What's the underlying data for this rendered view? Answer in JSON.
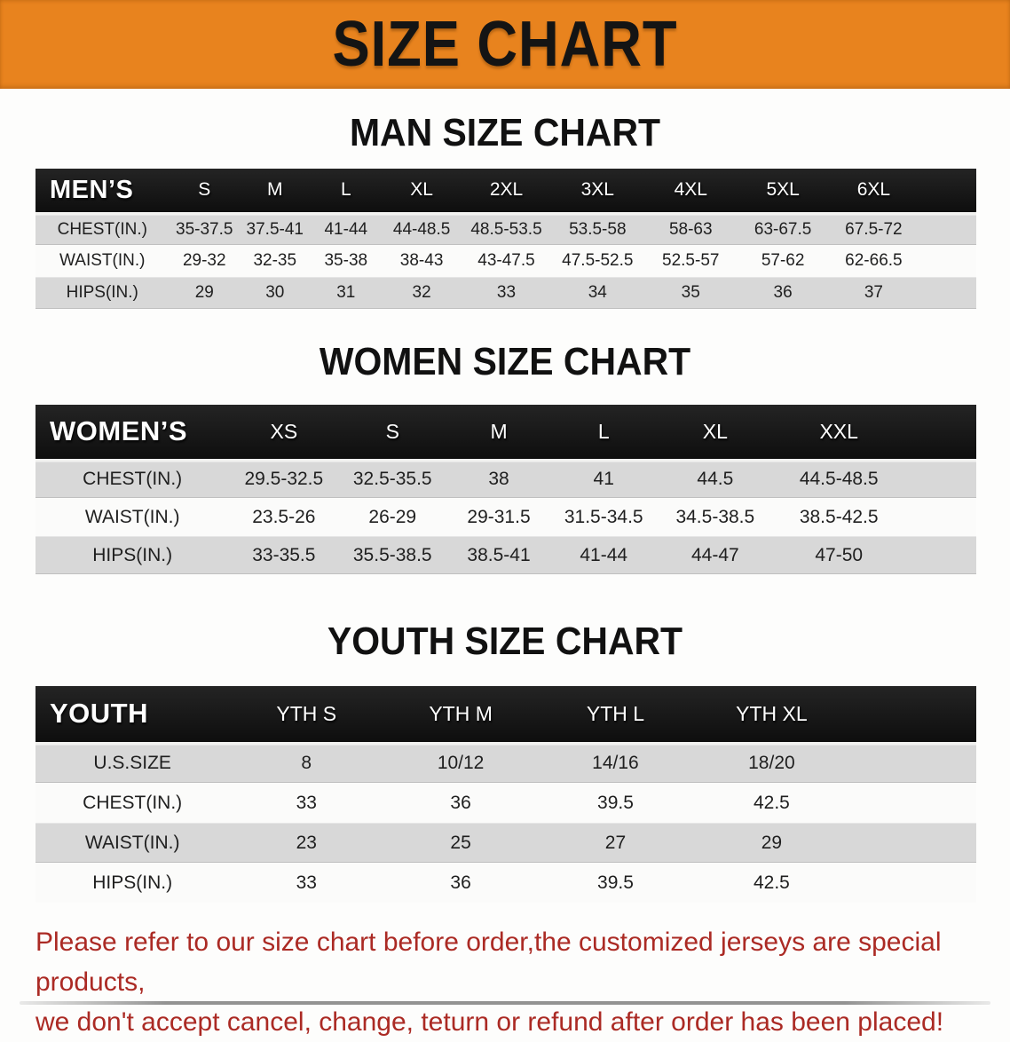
{
  "banner": {
    "title": "SIZE CHART"
  },
  "colors": {
    "banner_bg": "#E8831E",
    "table_header_bg": "#181818",
    "row_stripe": "#D8D8D8",
    "disclaimer_red": "#AB2A24"
  },
  "sections": [
    {
      "heading": "MAN SIZE CHART",
      "table": {
        "label": "MEN’S",
        "columns": [
          "S",
          "M",
          "L",
          "XL",
          "2XL",
          "3XL",
          "4XL",
          "5XL",
          "6XL"
        ],
        "rows": [
          {
            "label": "CHEST(IN.)",
            "values": [
              "35-37.5",
              "37.5-41",
              "41-44",
              "44-48.5",
              "48.5-53.5",
              "53.5-58",
              "58-63",
              "63-67.5",
              "67.5-72"
            ]
          },
          {
            "label": "WAIST(IN.)",
            "values": [
              "29-32",
              "32-35",
              "35-38",
              "38-43",
              "43-47.5",
              "47.5-52.5",
              "52.5-57",
              "57-62",
              "62-66.5"
            ]
          },
          {
            "label": "HIPS(IN.)",
            "values": [
              "29",
              "30",
              "31",
              "32",
              "33",
              "34",
              "35",
              "36",
              "37"
            ]
          }
        ]
      }
    },
    {
      "heading": "WOMEN SIZE CHART",
      "table": {
        "label": "WOMEN’S",
        "columns": [
          "XS",
          "S",
          "M",
          "L",
          "XL",
          "XXL"
        ],
        "rows": [
          {
            "label": "CHEST(IN.)",
            "values": [
              "29.5-32.5",
              "32.5-35.5",
              "38",
              "41",
              "44.5",
              "44.5-48.5"
            ]
          },
          {
            "label": "WAIST(IN.)",
            "values": [
              "23.5-26",
              "26-29",
              "29-31.5",
              "31.5-34.5",
              "34.5-38.5",
              "38.5-42.5"
            ]
          },
          {
            "label": "HIPS(IN.)",
            "values": [
              "33-35.5",
              "35.5-38.5",
              "38.5-41",
              "41-44",
              "44-47",
              "47-50"
            ]
          }
        ]
      }
    },
    {
      "heading": "YOUTH SIZE CHART",
      "table": {
        "label": "YOUTH",
        "columns": [
          "YTH S",
          "YTH M",
          "YTH L",
          "YTH XL"
        ],
        "rows": [
          {
            "label": "U.S.SIZE",
            "values": [
              "8",
              "10/12",
              "14/16",
              "18/20"
            ]
          },
          {
            "label": "CHEST(IN.)",
            "values": [
              "33",
              "36",
              "39.5",
              "42.5"
            ]
          },
          {
            "label": "WAIST(IN.)",
            "values": [
              "23",
              "25",
              "27",
              "29"
            ]
          },
          {
            "label": "HIPS(IN.)",
            "values": [
              "33",
              "36",
              "39.5",
              "42.5"
            ]
          }
        ]
      }
    }
  ],
  "disclaimer": {
    "line1": "Please refer to our size chart before order,the customized jerseys are special products,",
    "line2": "we don't accept cancel, change, teturn or refund after order has been placed!"
  }
}
